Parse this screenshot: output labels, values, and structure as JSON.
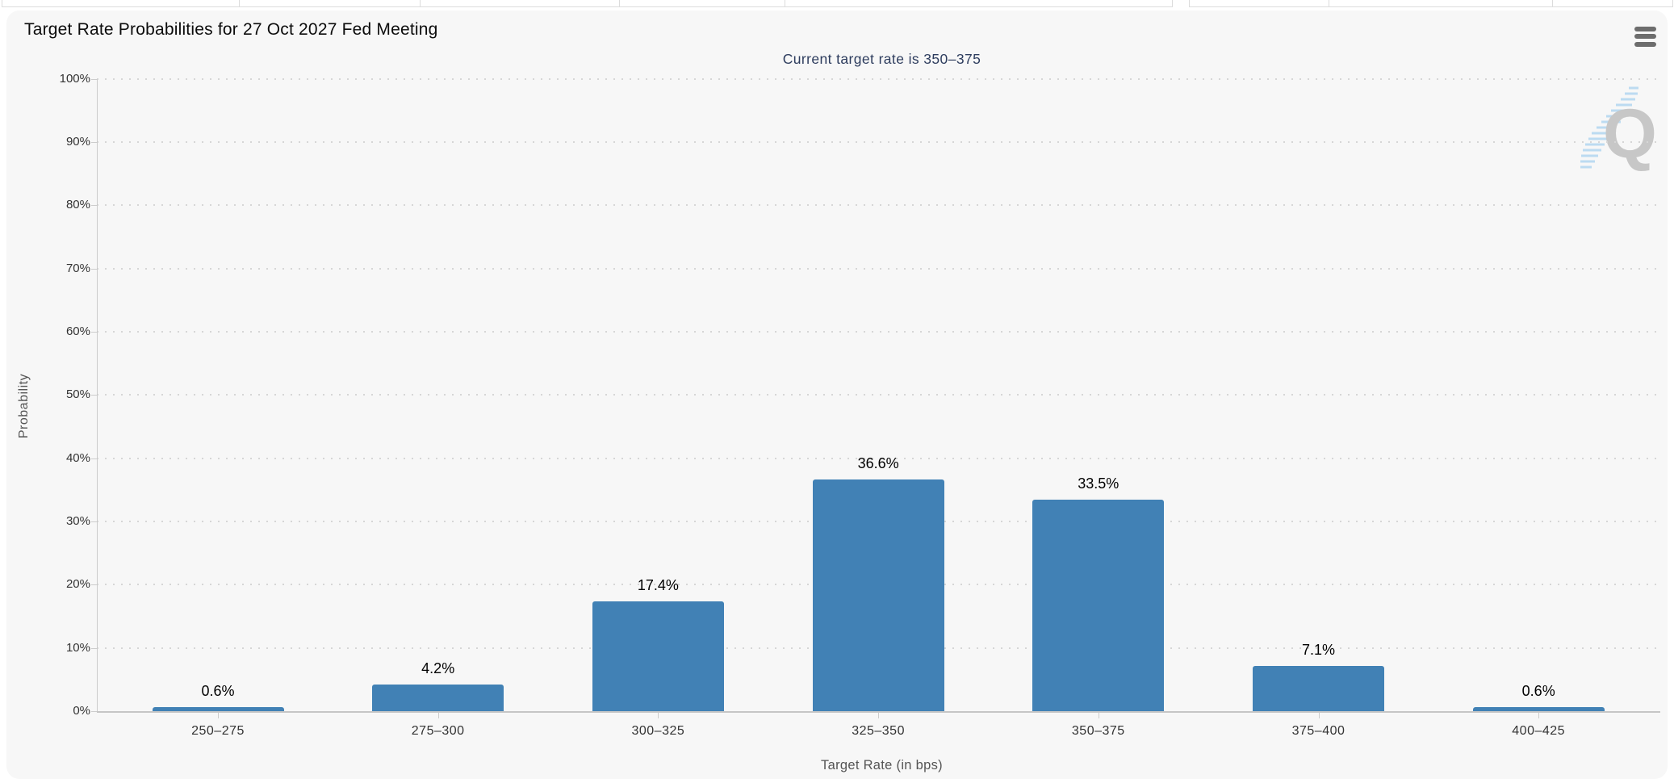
{
  "header": {
    "title": "Target Rate Probabilities for 27 Oct 2027 Fed Meeting"
  },
  "toolbar": {
    "menu_icon": "hamburger-icon"
  },
  "watermark": {
    "letter": "Q"
  },
  "colors": {
    "bar": "#4181b5",
    "subtitle": "#2e3d5e",
    "panel_bg": "#f7f7f7",
    "axis_line": "#cccccc",
    "grid_dot": "#d6d6d6",
    "label_text": "#333333",
    "watermark_gray": "#c7c7c7",
    "watermark_blue": "#a9d2ef"
  },
  "chart_data": {
    "type": "bar",
    "title": "Target Rate Probabilities for 27 Oct 2027 Fed Meeting",
    "subtitle": "Current target rate is 350–375",
    "categories": [
      "250–275",
      "275–300",
      "300–325",
      "325–350",
      "350–375",
      "375–400",
      "400–425"
    ],
    "values": [
      0.6,
      4.2,
      17.4,
      36.6,
      33.5,
      7.1,
      0.6
    ],
    "data_labels": [
      "0.6%",
      "4.2%",
      "17.4%",
      "36.6%",
      "33.5%",
      "7.1%",
      "0.6%"
    ],
    "xlabel": "Target Rate (in bps)",
    "ylabel": "Probability",
    "ylim": [
      0,
      100
    ],
    "ytick_step": 10,
    "yticks": [
      "0%",
      "10%",
      "20%",
      "30%",
      "40%",
      "50%",
      "60%",
      "70%",
      "80%",
      "90%",
      "100%"
    ],
    "grid": "dotted horizontal gridlines, on",
    "legend": "none",
    "bar_color": "#4181b5"
  }
}
